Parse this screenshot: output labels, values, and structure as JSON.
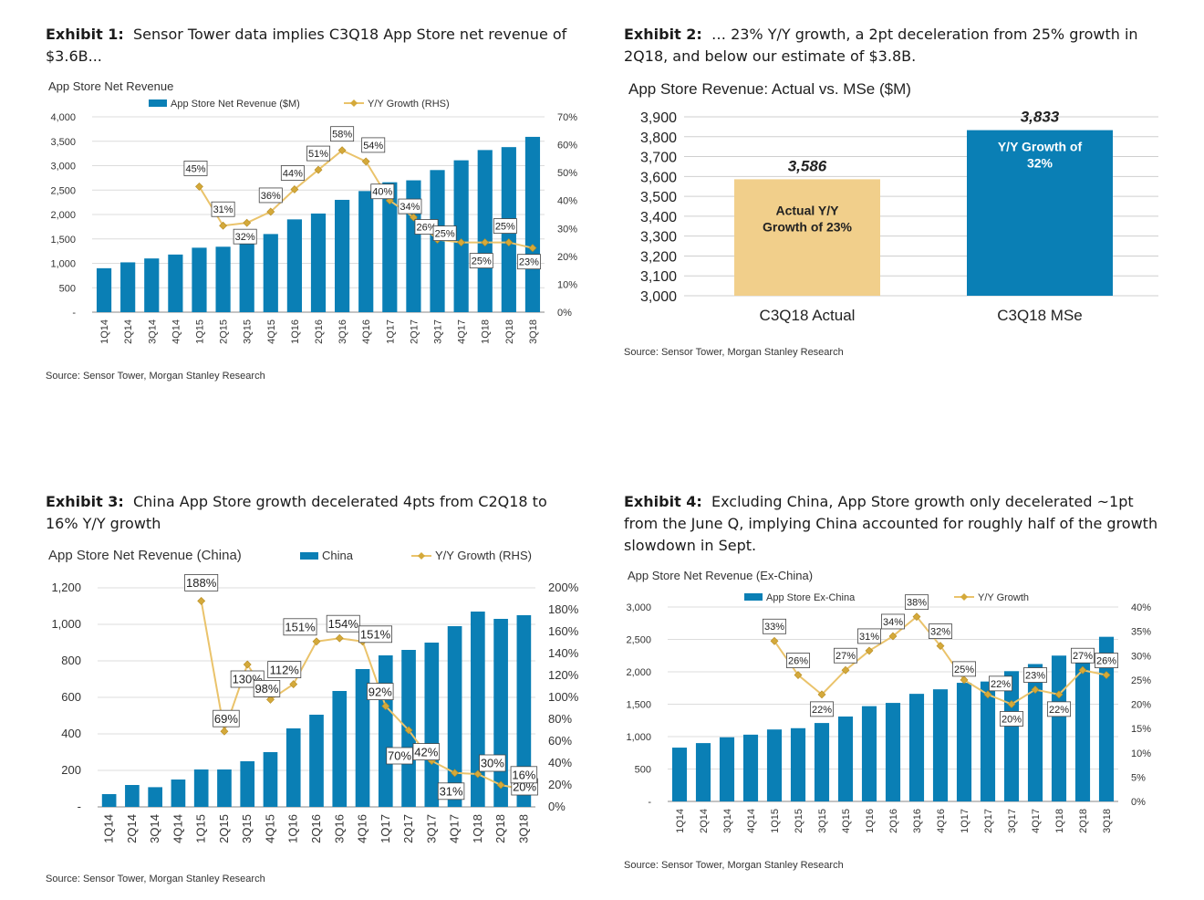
{
  "colors": {
    "bar": "#0a7fb5",
    "line": "#eac36b",
    "marker": "#d4a93a",
    "actual": "#f1cf8b",
    "mse": "#0a7fb5"
  },
  "exhibits": [
    {
      "label": "Exhibit 1:",
      "title": "Sensor Tower data implies C3Q18 App Store net revenue of $3.6B...",
      "source": "Source: Sensor Tower, Morgan Stanley Research"
    },
    {
      "label": "Exhibit 2:",
      "title": "… 23% Y/Y growth, a 2pt deceleration from 25% growth in 2Q18, and below our estimate of $3.8B.",
      "source": "Source: Sensor Tower, Morgan Stanley Research"
    },
    {
      "label": "Exhibit 3:",
      "title": "China App Store growth decelerated 4pts from C2Q18 to 16% Y/Y growth",
      "source": "Source: Sensor Tower, Morgan Stanley Research"
    },
    {
      "label": "Exhibit 4:",
      "title": "Excluding China, App Store growth only decelerated ~1pt from the June Q, implying China accounted for roughly half of the growth slowdown in Sept.",
      "source": "Source: Sensor Tower, Morgan Stanley Research"
    }
  ],
  "chart_data": [
    {
      "type": "bar",
      "title": "App Store Net Revenue",
      "categories": [
        "1Q14",
        "2Q14",
        "3Q14",
        "4Q14",
        "1Q15",
        "2Q15",
        "3Q15",
        "4Q15",
        "1Q16",
        "2Q16",
        "3Q16",
        "4Q16",
        "1Q17",
        "2Q17",
        "3Q17",
        "4Q17",
        "1Q18",
        "2Q18",
        "3Q18"
      ],
      "series": [
        {
          "name": "App Store Net Revenue ($M)",
          "kind": "bar",
          "axis": "left",
          "values": [
            900,
            1020,
            1100,
            1180,
            1320,
            1340,
            1450,
            1600,
            1900,
            2020,
            2300,
            2480,
            2660,
            2700,
            2910,
            3110,
            3320,
            3380,
            3590
          ]
        },
        {
          "name": "Y/Y Growth (RHS)",
          "kind": "line",
          "axis": "right",
          "values": [
            null,
            null,
            null,
            null,
            45,
            31,
            32,
            36,
            44,
            51,
            58,
            54,
            40,
            34,
            26,
            25,
            25,
            25,
            23
          ],
          "labels": [
            "",
            "",
            "",
            "",
            "45%",
            "31%",
            "32%",
            "36%",
            "44%",
            "51%",
            "58%",
            "54%",
            "40%",
            "34%",
            "26%",
            "25%",
            "25%",
            "25%",
            "23%"
          ]
        }
      ],
      "ylim": [
        0,
        4000
      ],
      "yticks": [
        "-",
        "500",
        "1,000",
        "1,500",
        "2,000",
        "2,500",
        "3,000",
        "3,500",
        "4,000"
      ],
      "y2lim": [
        0,
        70
      ],
      "y2ticks": [
        "0%",
        "10%",
        "20%",
        "30%",
        "40%",
        "50%",
        "60%",
        "70%"
      ],
      "legend": "top"
    },
    {
      "type": "bar",
      "title": "App Store Revenue: Actual vs. MSe ($M)",
      "categories": [
        "C3Q18 Actual",
        "C3Q18 MSe"
      ],
      "values": [
        3586,
        3833
      ],
      "value_labels": [
        "3,586",
        "3,833"
      ],
      "bar_texts": [
        [
          "Actual Y/Y",
          "Growth of 23%"
        ],
        [
          "Y/Y Growth of",
          "32%"
        ]
      ],
      "ylim": [
        3000,
        3900
      ],
      "yticks": [
        "3,000",
        "3,100",
        "3,200",
        "3,300",
        "3,400",
        "3,500",
        "3,600",
        "3,700",
        "3,800",
        "3,900"
      ]
    },
    {
      "type": "bar",
      "title": "App Store Net Revenue (China)",
      "categories": [
        "1Q14",
        "2Q14",
        "3Q14",
        "4Q14",
        "1Q15",
        "2Q15",
        "3Q15",
        "4Q15",
        "1Q16",
        "2Q16",
        "3Q16",
        "4Q16",
        "1Q17",
        "2Q17",
        "3Q17",
        "4Q17",
        "1Q18",
        "2Q18",
        "3Q18"
      ],
      "series": [
        {
          "name": "China",
          "kind": "bar",
          "axis": "left",
          "values": [
            70,
            120,
            108,
            150,
            205,
            205,
            250,
            300,
            430,
            505,
            635,
            755,
            830,
            860,
            900,
            990,
            1070,
            1030,
            1050
          ]
        },
        {
          "name": "Y/Y Growth (RHS)",
          "kind": "line",
          "axis": "right",
          "values": [
            null,
            null,
            null,
            null,
            188,
            69,
            130,
            98,
            112,
            151,
            154,
            151,
            92,
            70,
            42,
            31,
            30,
            20,
            16
          ],
          "labels": [
            "",
            "",
            "",
            "",
            "188%",
            "69%",
            "130%",
            "98%",
            "112%",
            "151%",
            "154%",
            "151%",
            "92%",
            "70%",
            "42%",
            "31%",
            "30%",
            "20%",
            "16%"
          ]
        }
      ],
      "ylim": [
        0,
        1200
      ],
      "yticks": [
        "-",
        "200",
        "400",
        "600",
        "800",
        "1,000",
        "1,200"
      ],
      "y2lim": [
        0,
        200
      ],
      "y2ticks": [
        "0%",
        "20%",
        "40%",
        "60%",
        "80%",
        "100%",
        "120%",
        "140%",
        "160%",
        "180%",
        "200%"
      ],
      "legend": "top"
    },
    {
      "type": "bar",
      "title": "App Store Net Revenue (Ex-China)",
      "categories": [
        "1Q14",
        "2Q14",
        "3Q14",
        "4Q14",
        "1Q15",
        "2Q15",
        "3Q15",
        "4Q15",
        "1Q16",
        "2Q16",
        "3Q16",
        "4Q16",
        "1Q17",
        "2Q17",
        "3Q17",
        "4Q17",
        "1Q18",
        "2Q18",
        "3Q18"
      ],
      "series": [
        {
          "name": "App Store Ex-China",
          "kind": "bar",
          "axis": "left",
          "values": [
            830,
            900,
            990,
            1030,
            1110,
            1130,
            1210,
            1310,
            1470,
            1520,
            1660,
            1730,
            1830,
            1850,
            2010,
            2120,
            2250,
            2350,
            2540
          ]
        },
        {
          "name": "Y/Y Growth",
          "kind": "line",
          "axis": "right",
          "values": [
            null,
            null,
            null,
            null,
            33,
            26,
            22,
            27,
            31,
            34,
            38,
            32,
            25,
            22,
            20,
            23,
            22,
            27,
            26
          ],
          "labels": [
            "",
            "",
            "",
            "",
            "33%",
            "26%",
            "22%",
            "27%",
            "31%",
            "34%",
            "38%",
            "32%",
            "25%",
            "22%",
            "20%",
            "23%",
            "22%",
            "27%",
            "26%"
          ]
        }
      ],
      "ylim": [
        0,
        3000
      ],
      "yticks": [
        "-",
        "500",
        "1,000",
        "1,500",
        "2,000",
        "2,500",
        "3,000"
      ],
      "y2lim": [
        0,
        40
      ],
      "y2ticks": [
        "0%",
        "5%",
        "10%",
        "15%",
        "20%",
        "25%",
        "30%",
        "35%",
        "40%"
      ],
      "legend": "top"
    }
  ]
}
